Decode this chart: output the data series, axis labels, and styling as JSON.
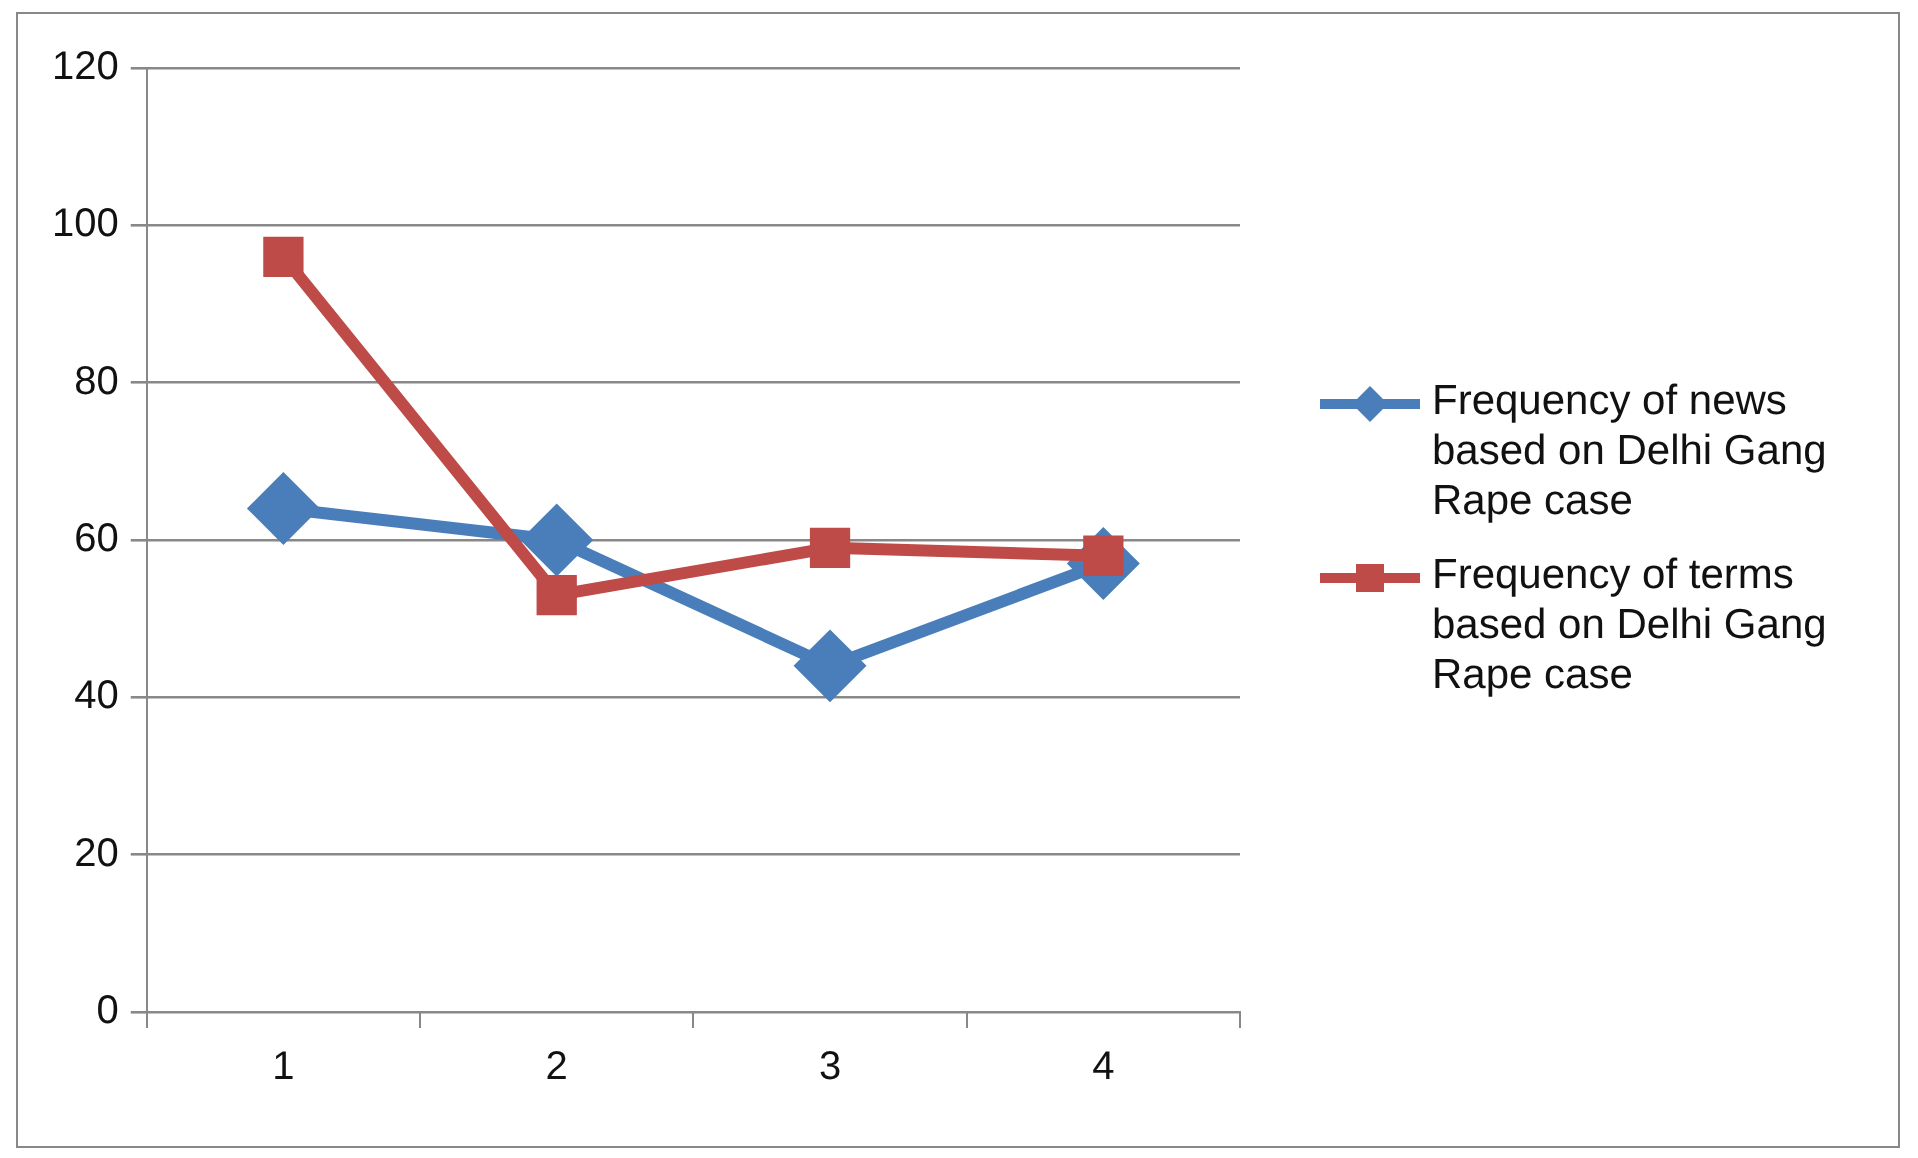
{
  "chart_data": {
    "type": "line",
    "categories": [
      "1",
      "2",
      "3",
      "4"
    ],
    "series": [
      {
        "name": "Frequency of news based on Delhi Gang Rape case",
        "color": "#4a7ebb",
        "values": [
          64,
          60,
          44,
          57
        ],
        "marker": "diamond"
      },
      {
        "name": "Frequency of terms based on Delhi Gang Rape case",
        "color": "#be4b48",
        "values": [
          96,
          53,
          59,
          58
        ],
        "marker": "square"
      }
    ],
    "ylim": [
      0,
      120
    ],
    "yticks": [
      0,
      20,
      40,
      60,
      80,
      100,
      120
    ],
    "grid": "y",
    "legend": "right"
  }
}
